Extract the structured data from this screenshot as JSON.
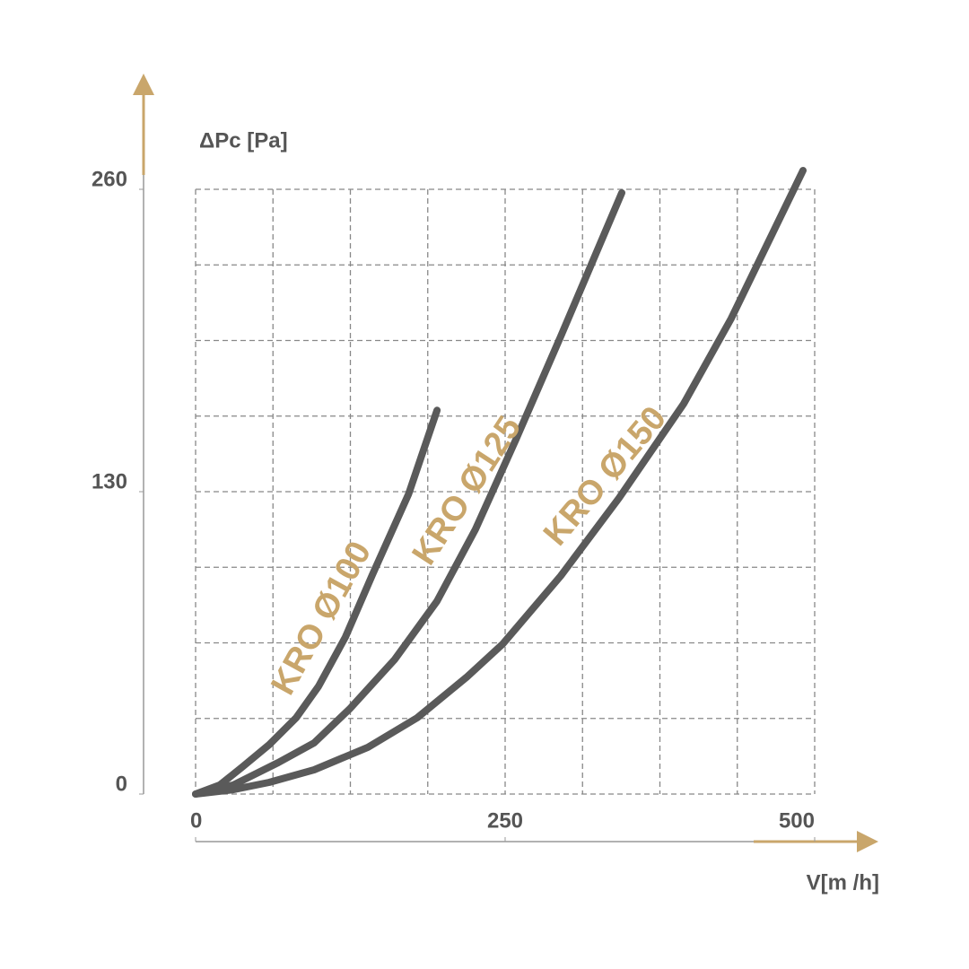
{
  "chart_data": {
    "type": "line",
    "ylabel": "ΔPc [Pa]",
    "xlabel": "V[m /h]",
    "xlim": [
      0,
      500
    ],
    "ylim": [
      0,
      260
    ],
    "xticks": [
      0,
      250,
      500
    ],
    "yticks": [
      0,
      130,
      260
    ],
    "grid": true,
    "series": [
      {
        "name": "KRO Ø100",
        "color": "#5a5a5a",
        "x": [
          0,
          19.6,
          37.7,
          59.4,
          81.2,
          99.3,
          121,
          143,
          172,
          195
        ],
        "values": [
          0,
          3.9,
          11.6,
          21.2,
          32.8,
          46.3,
          67.5,
          94.5,
          129,
          165
        ]
      },
      {
        "name": "KRO Ø125",
        "color": "#5a5a5a",
        "x": [
          0,
          30.4,
          66.7,
          95.7,
          124.6,
          160.9,
          194.9,
          226,
          258.7,
          294.9,
          344.2
        ],
        "values": [
          0,
          3.9,
          13.5,
          22,
          36.7,
          57.9,
          82.9,
          113.8,
          152.4,
          196.8,
          258.5
        ]
      },
      {
        "name": "KRO Ø150",
        "color": "#5a5a5a",
        "x": [
          0,
          30.4,
          59.4,
          95.7,
          139.1,
          179,
          218.8,
          247.8,
          294.9,
          342,
          394.2,
          432.6,
          490.6
        ],
        "values": [
          0,
          1.9,
          5,
          10.4,
          20.1,
          32.8,
          50.2,
          64.4,
          93.8,
          127.3,
          167.8,
          204.5,
          268.1
        ]
      }
    ]
  }
}
